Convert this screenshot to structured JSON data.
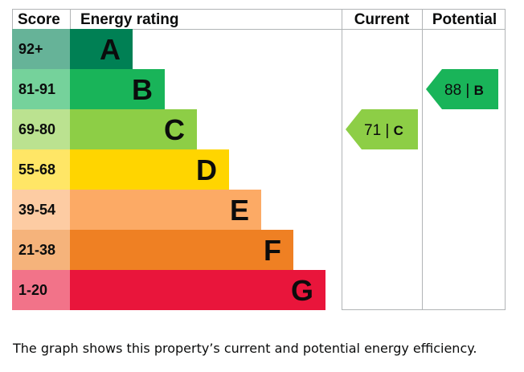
{
  "chart_data": {
    "type": "bar",
    "headers": {
      "score": "Score",
      "rating": "Energy rating",
      "current": "Current",
      "potential": "Potential"
    },
    "bands": [
      {
        "score": "92+",
        "letter": "A",
        "color": "#008054",
        "score_bg": "#66b398",
        "letter_color": "#0b0c0c"
      },
      {
        "score": "81-91",
        "letter": "B",
        "color": "#19b459",
        "score_bg": "#75d29b",
        "letter_color": "#0b0c0c"
      },
      {
        "score": "69-80",
        "letter": "C",
        "color": "#8dce46",
        "score_bg": "#bbe290",
        "letter_color": "#0b0c0c"
      },
      {
        "score": "55-68",
        "letter": "D",
        "color": "#ffd500",
        "score_bg": "#ffe666",
        "letter_color": "#0b0c0c"
      },
      {
        "score": "39-54",
        "letter": "E",
        "color": "#fcaa65",
        "score_bg": "#fdcca3",
        "letter_color": "#0b0c0c"
      },
      {
        "score": "21-38",
        "letter": "F",
        "color": "#ef8023",
        "score_bg": "#f5b37b",
        "letter_color": "#0b0c0c"
      },
      {
        "score": "1-20",
        "letter": "G",
        "color": "#e9153b",
        "score_bg": "#f27389",
        "letter_color": "#0b0c0c"
      }
    ],
    "current": {
      "value": 71,
      "letter": "C",
      "band_index": 2,
      "color": "#8dce46"
    },
    "potential": {
      "value": 88,
      "letter": "B",
      "band_index": 1,
      "color": "#19b459"
    }
  },
  "caption": "The graph shows this property’s current and potential energy efficiency."
}
